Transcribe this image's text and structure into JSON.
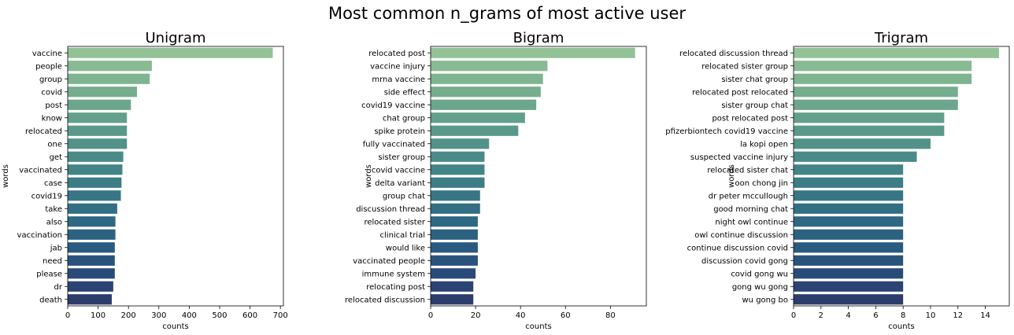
{
  "figure_title": "Most common n_grams of most active user",
  "chart_data": [
    {
      "type": "bar",
      "orientation": "horizontal",
      "title": "Unigram",
      "xlabel": "counts",
      "ylabel": "words",
      "xlim": [
        0,
        710
      ],
      "xticks": [
        0,
        100,
        200,
        300,
        400,
        500,
        600,
        700
      ],
      "categories": [
        "vaccine",
        "people",
        "group",
        "covid",
        "post",
        "know",
        "relocated",
        "one",
        "get",
        "vaccinated",
        "case",
        "covid19",
        "take",
        "also",
        "vaccination",
        "jab",
        "need",
        "please",
        "dr",
        "death"
      ],
      "values": [
        675,
        277,
        270,
        228,
        208,
        195,
        195,
        195,
        183,
        180,
        177,
        175,
        163,
        157,
        157,
        155,
        155,
        155,
        150,
        145
      ]
    },
    {
      "type": "bar",
      "orientation": "horizontal",
      "title": "Bigram",
      "xlabel": "counts",
      "ylabel": "words",
      "xlim": [
        0,
        96
      ],
      "xticks": [
        0,
        20,
        40,
        60,
        80
      ],
      "categories": [
        "relocated post",
        "vaccine injury",
        "mrna vaccine",
        "side effect",
        "covid19 vaccine",
        "chat group",
        "spike protein",
        "fully vaccinated",
        "sister group",
        "covid vaccine",
        "delta variant",
        "group chat",
        "discussion thread",
        "relocated sister",
        "clinical trial",
        "would like",
        "vaccinated people",
        "immune system",
        "relocating post",
        "relocated discussion"
      ],
      "values": [
        91,
        52,
        50,
        49,
        47,
        42,
        39,
        26,
        24,
        24,
        24,
        22,
        22,
        21,
        21,
        21,
        21,
        20,
        19,
        19
      ]
    },
    {
      "type": "bar",
      "orientation": "horizontal",
      "title": "Trigram",
      "xlabel": "counts",
      "ylabel": "words",
      "xlim": [
        0,
        15.75
      ],
      "xticks": [
        0,
        2,
        4,
        6,
        8,
        10,
        12,
        14
      ],
      "categories": [
        "relocated discussion thread",
        "relocated sister group",
        "sister chat group",
        "relocated post relocated",
        "sister group chat",
        "post relocated post",
        "pfizerbiontech covid19 vaccine",
        "la kopi open",
        "suspected vaccine injury",
        "relocated sister chat",
        "oon chong jin",
        "dr peter mccullough",
        "good morning chat",
        "night owl continue",
        "owl continue discussion",
        "continue discussion covid",
        "discussion covid gong",
        "covid gong wu",
        "gong wu gong",
        "wu gong bo"
      ],
      "values": [
        15,
        13,
        13,
        12,
        12,
        11,
        11,
        10,
        9,
        8,
        8,
        8,
        8,
        8,
        8,
        8,
        8,
        8,
        8,
        8
      ]
    }
  ],
  "palette": [
    "#93c296",
    "#88ba93",
    "#7fb490",
    "#75ad8e",
    "#6ca68c",
    "#62a08b",
    "#5a998a",
    "#529289",
    "#4a8b88",
    "#438487",
    "#3d7d86",
    "#387685",
    "#336f84",
    "#2f6883",
    "#2c6182",
    "#2a5a80",
    "#29537d",
    "#2a4b79",
    "#2b4473",
    "#2c3d6c"
  ]
}
